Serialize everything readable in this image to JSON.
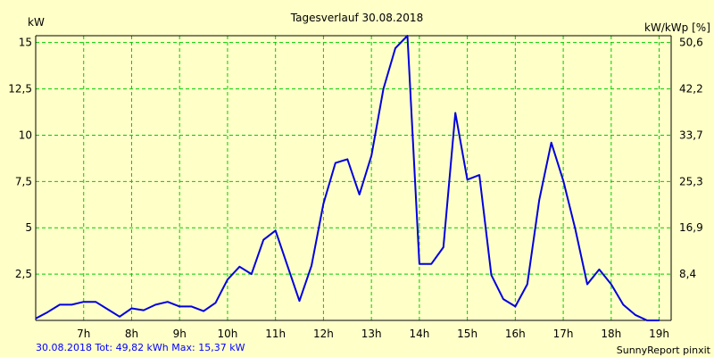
{
  "chart_data": {
    "type": "line",
    "title": "Tagesverlauf 30.08.2018",
    "ylabel_left": "kW",
    "ylabel_right": "kW/kWp [%]",
    "x_tick_labels": [
      "7h",
      "8h",
      "9h",
      "10h",
      "11h",
      "12h",
      "13h",
      "14h",
      "15h",
      "16h",
      "17h",
      "18h",
      "19h"
    ],
    "x_ticks_hours": [
      7,
      8,
      9,
      10,
      11,
      12,
      13,
      14,
      15,
      16,
      17,
      18,
      19
    ],
    "xlim_hours": [
      6.0,
      19.25
    ],
    "y_left_ticks": [
      2.5,
      5,
      7.5,
      10,
      12.5,
      15
    ],
    "y_left_tick_labels": [
      "2,5",
      "5",
      "7,5",
      "10",
      "12,5",
      "15"
    ],
    "y_right_tick_labels": [
      "8,4",
      "16,9",
      "25,3",
      "33,7",
      "42,2",
      "50,6"
    ],
    "ylim": [
      0,
      15.37
    ],
    "grid": true,
    "series": [
      {
        "color": "#0000dd",
        "x": [
          6.0,
          6.25,
          6.5,
          6.75,
          7.0,
          7.25,
          7.5,
          7.75,
          8.0,
          8.25,
          8.5,
          8.75,
          9.0,
          9.25,
          9.5,
          9.75,
          10.0,
          10.25,
          10.5,
          10.75,
          11.0,
          11.25,
          11.5,
          11.75,
          12.0,
          12.25,
          12.5,
          12.75,
          13.0,
          13.25,
          13.5,
          13.75,
          14.0,
          14.25,
          14.5,
          14.75,
          15.0,
          15.25,
          15.5,
          15.75,
          16.0,
          16.25,
          16.5,
          16.75,
          17.0,
          17.25,
          17.5,
          17.75,
          18.0,
          18.25,
          18.5,
          18.75,
          19.0
        ],
        "values": [
          0.1,
          0.45,
          0.85,
          0.85,
          1.0,
          1.0,
          0.6,
          0.2,
          0.65,
          0.55,
          0.85,
          1.0,
          0.75,
          0.75,
          0.5,
          0.95,
          2.2,
          2.9,
          2.5,
          4.35,
          4.85,
          2.95,
          1.05,
          2.95,
          6.3,
          8.5,
          8.7,
          6.8,
          8.9,
          12.5,
          14.7,
          15.37,
          3.05,
          3.05,
          3.95,
          11.2,
          7.6,
          7.85,
          2.45,
          1.15,
          0.75,
          1.95,
          6.5,
          9.6,
          7.55,
          4.95,
          1.95,
          2.75,
          1.95,
          0.85,
          0.3,
          0.0,
          0.0
        ]
      }
    ]
  },
  "footer": {
    "left": "30.08.2018 Tot: 49,82 kWh Max: 15,37 kW",
    "right": "SunnyReport pinxit"
  }
}
